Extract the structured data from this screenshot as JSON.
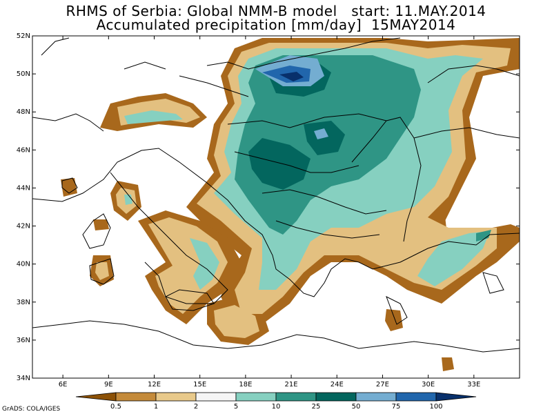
{
  "title_line1": "RHMS of Serbia: Global NMM-B model   start: 11.MAY.2014",
  "title_line2": "Accumulated precipitation [mm/day]  15MAY2014",
  "map": {
    "lon_range": [
      4,
      36
    ],
    "lat_range": [
      34,
      52
    ],
    "lon_ticks": [
      "6E",
      "9E",
      "12E",
      "15E",
      "18E",
      "21E",
      "24E",
      "27E",
      "30E",
      "33E"
    ],
    "lat_ticks": [
      "52N",
      "50N",
      "48N",
      "46N",
      "44N",
      "42N",
      "40N",
      "38N",
      "36N",
      "34N"
    ]
  },
  "legend": {
    "labels": [
      "0.5",
      "1",
      "2",
      "5",
      "10",
      "25",
      "50",
      "75",
      "100"
    ],
    "colors": [
      "#8c5106",
      "#c48a3a",
      "#e8c98a",
      "#f5f5f5",
      "#86d0c0",
      "#2f9585",
      "#03665e",
      "#74add1",
      "#2166ac",
      "#08306b"
    ]
  },
  "credit": "GrADS: COLA/IGES"
}
